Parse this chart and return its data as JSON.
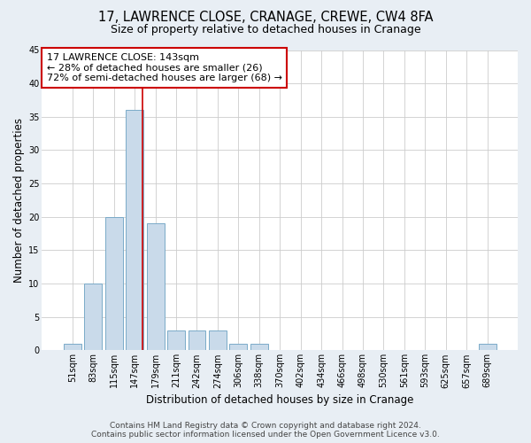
{
  "title1": "17, LAWRENCE CLOSE, CRANAGE, CREWE, CW4 8FA",
  "title2": "Size of property relative to detached houses in Cranage",
  "xlabel": "Distribution of detached houses by size in Cranage",
  "ylabel": "Number of detached properties",
  "categories": [
    "51sqm",
    "83sqm",
    "115sqm",
    "147sqm",
    "179sqm",
    "211sqm",
    "242sqm",
    "274sqm",
    "306sqm",
    "338sqm",
    "370sqm",
    "402sqm",
    "434sqm",
    "466sqm",
    "498sqm",
    "530sqm",
    "561sqm",
    "593sqm",
    "625sqm",
    "657sqm",
    "689sqm"
  ],
  "values": [
    1,
    10,
    20,
    36,
    19,
    3,
    3,
    3,
    1,
    1,
    0,
    0,
    0,
    0,
    0,
    0,
    0,
    0,
    0,
    0,
    1
  ],
  "bar_color": "#c9daea",
  "bar_edge_color": "#7aaac8",
  "highlight_line_color": "#cc0000",
  "annotation_text": "17 LAWRENCE CLOSE: 143sqm\n← 28% of detached houses are smaller (26)\n72% of semi-detached houses are larger (68) →",
  "annotation_box_color": "#ffffff",
  "annotation_box_edge": "#cc0000",
  "ylim": [
    0,
    45
  ],
  "yticks": [
    0,
    5,
    10,
    15,
    20,
    25,
    30,
    35,
    40,
    45
  ],
  "footer1": "Contains HM Land Registry data © Crown copyright and database right 2024.",
  "footer2": "Contains public sector information licensed under the Open Government Licence v3.0.",
  "bg_color": "#e8eef4",
  "plot_bg_color": "#ffffff",
  "grid_color": "#cccccc",
  "title1_fontsize": 10.5,
  "title2_fontsize": 9,
  "axis_label_fontsize": 8.5,
  "annotation_fontsize": 8,
  "tick_fontsize": 7,
  "footer_fontsize": 6.5
}
